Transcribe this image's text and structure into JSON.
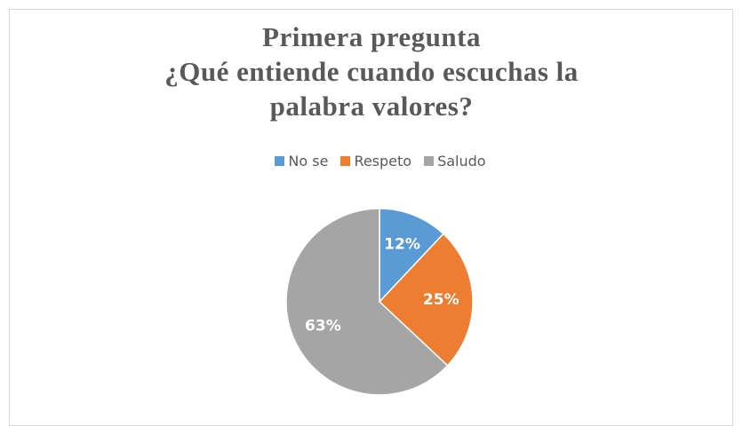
{
  "chart_data": {
    "type": "pie",
    "title": "Primera pregunta",
    "subtitle": "¿Qué entiende cuando escuchas la palabra valores?",
    "categories": [
      "No se",
      "Respeto",
      "Saludo"
    ],
    "values": [
      12,
      25,
      63
    ],
    "value_labels": [
      "12%",
      "25%",
      "63%"
    ],
    "colors": [
      "#5b9bd5",
      "#ed7d31",
      "#a5a5a5"
    ],
    "legend": "top"
  }
}
